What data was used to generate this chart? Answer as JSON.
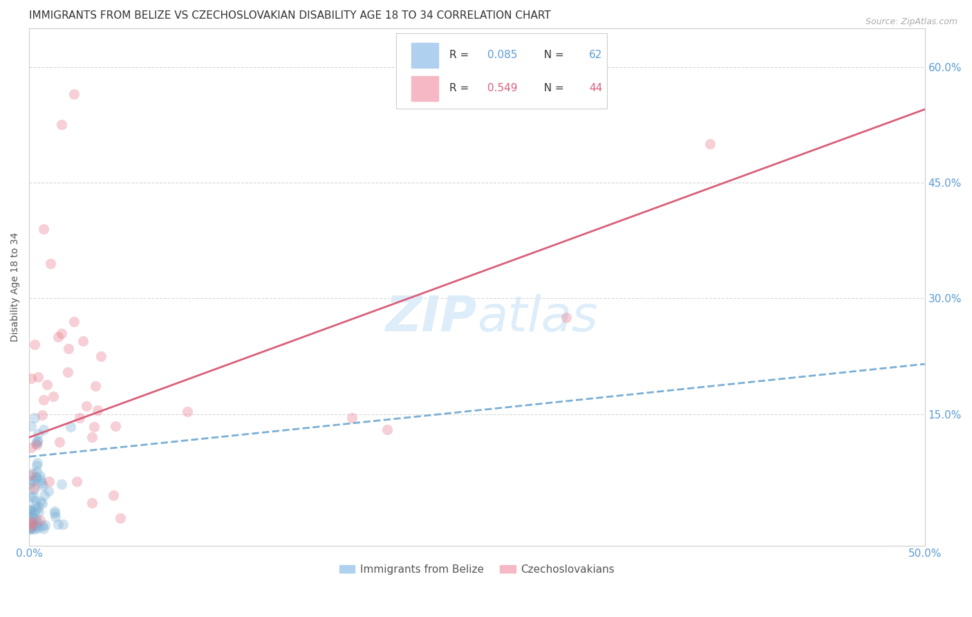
{
  "title": "IMMIGRANTS FROM BELIZE VS CZECHOSLOVAKIAN DISABILITY AGE 18 TO 34 CORRELATION CHART",
  "source": "Source: ZipAtlas.com",
  "ylabel": "Disability Age 18 to 34",
  "xlim": [
    0.0,
    0.5
  ],
  "ylim": [
    -0.02,
    0.65
  ],
  "ytick_vals": [
    0.15,
    0.3,
    0.45,
    0.6
  ],
  "ytick_labels": [
    "15.0%",
    "30.0%",
    "45.0%",
    "60.0%"
  ],
  "blue_r": 0.085,
  "blue_n": 62,
  "pink_r": 0.549,
  "pink_n": 44,
  "blue_dot_color": "#7bafd4",
  "pink_dot_color": "#e8798a",
  "blue_line_color": "#7bafd4",
  "pink_line_color": "#d95f7a",
  "blue_legend_color": "#afd0ee",
  "pink_legend_color": "#f5b8c4",
  "grid_color": "#d8d8d8",
  "title_color": "#333333",
  "tick_color": "#5b9bd5",
  "source_color": "#aaaaaa",
  "watermark_color": "#d8eaf8",
  "background_color": "#ffffff",
  "blue_line_intercept": 0.095,
  "blue_line_slope": 0.24,
  "pink_line_intercept": 0.12,
  "pink_line_slope": 0.85
}
